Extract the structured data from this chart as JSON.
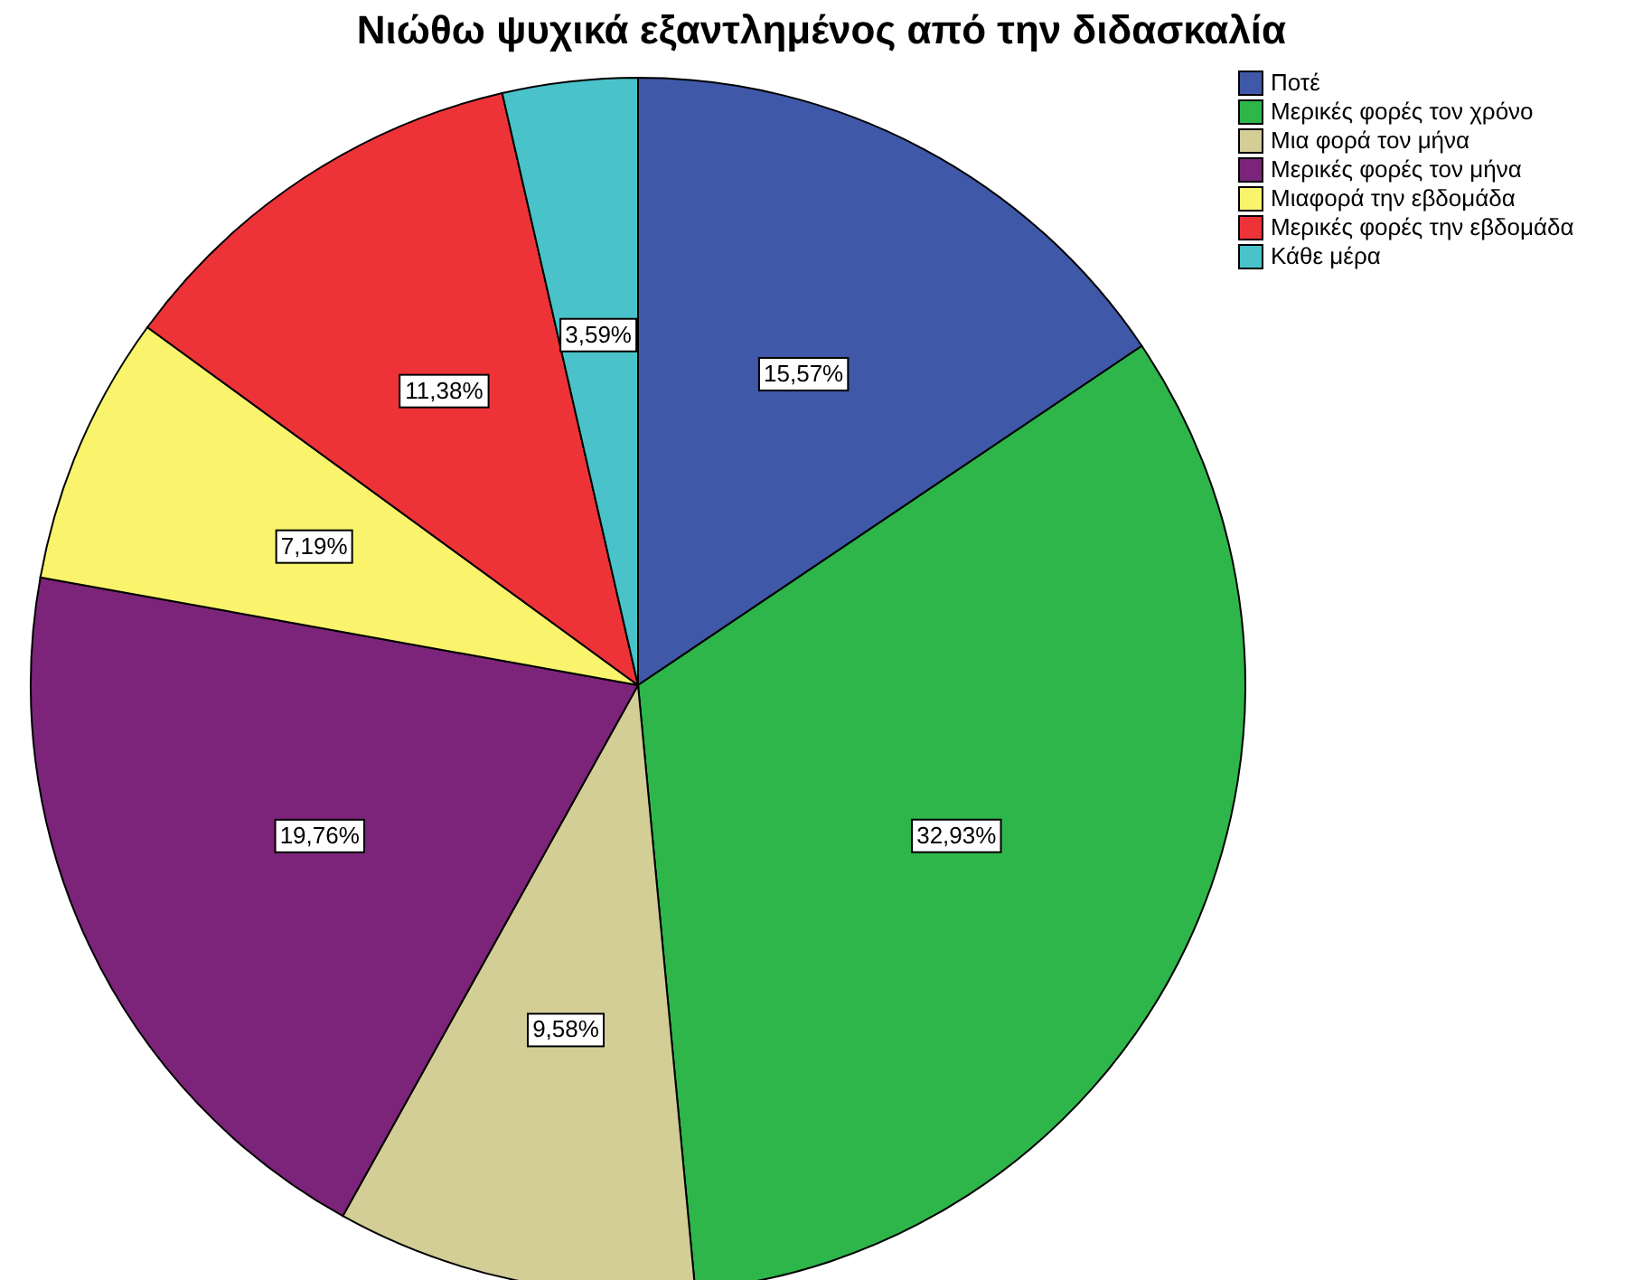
{
  "chart_data": {
    "type": "pie",
    "title": "Νιώθω ψυχικά εξαντλημένος από την διδασκαλία",
    "categories": [
      "Ποτέ",
      "Μερικές φορές τον χρόνο",
      "Μια φορά τον μήνα",
      "Μερικές φορές τον μήνα",
      "Μιαφορά την εβδομάδα",
      "Μερικές φορές την εβδομάδα",
      "Κάθε μέρα"
    ],
    "values": [
      15.57,
      32.93,
      9.58,
      19.76,
      7.19,
      11.38,
      3.59
    ],
    "value_labels": [
      "15,57%",
      "32,93%",
      "9,58%",
      "19,76%",
      "7,19%",
      "11,38%",
      "3,59%"
    ],
    "colors": [
      "#3f58a8",
      "#2eb64a",
      "#d3cd96",
      "#7b2479",
      "#f9f46c",
      "#ee3338",
      "#49c3c9"
    ],
    "legend": "top right"
  }
}
